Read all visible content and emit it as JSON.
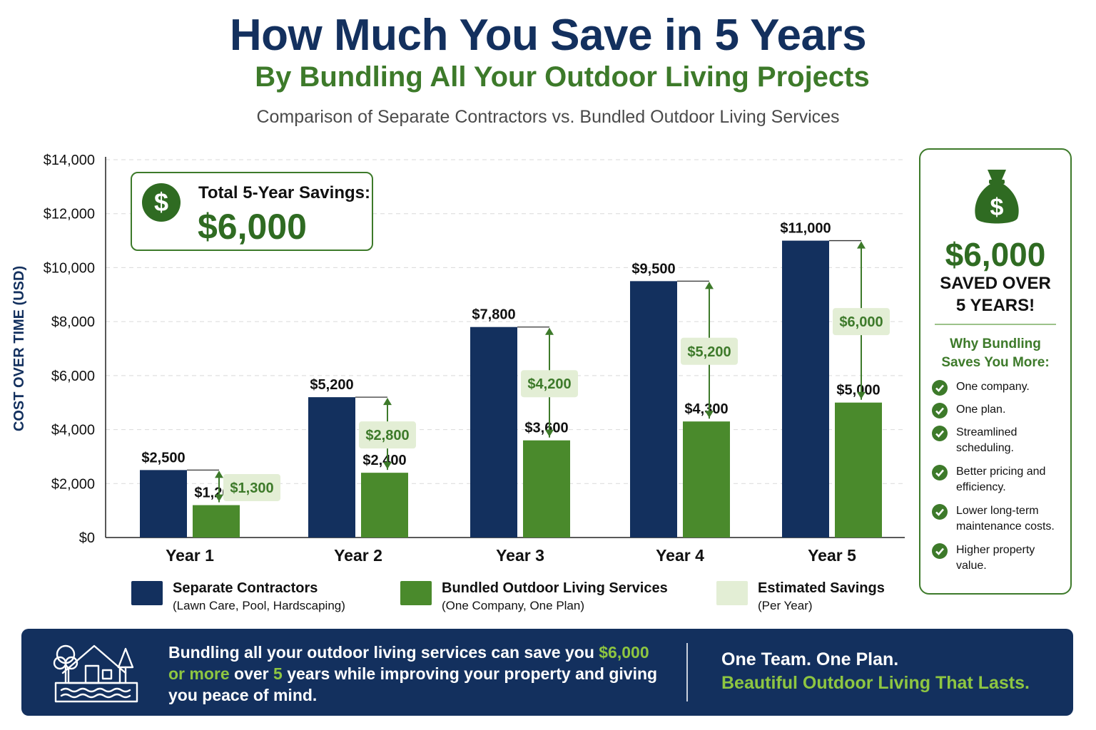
{
  "header": {
    "title": "How Much You Save in 5 Years",
    "subtitle": "By Bundling All Your Outdoor Living Projects",
    "caption": "Comparison of Separate Contractors vs. Bundled Outdoor Living Services"
  },
  "total_box": {
    "icon": "dollar-coin-icon",
    "label": "Total 5-Year Savings:",
    "value": "$6,000"
  },
  "side_panel": {
    "icon": "money-bag-icon",
    "amount": "$6,000",
    "saved_line1": "SAVED OVER",
    "saved_line2": "5 YEARS!",
    "why_line1": "Why Bundling",
    "why_line2": "Saves You More:",
    "items": [
      "One company.",
      "One plan.",
      "Streamlined scheduling.",
      "Better pricing and efficiency.",
      "Lower long-term maintenance costs.",
      "Higher property value."
    ]
  },
  "legend": [
    {
      "title": "Separate Contractors",
      "sub": "(Lawn Care, Pool, Hardscaping)",
      "color": "#13305e"
    },
    {
      "title": "Bundled Outdoor Living Services",
      "sub": "(One Company, One Plan)",
      "color": "#4a8a2c"
    },
    {
      "title": "Estimated Savings",
      "sub": "(Per Year)",
      "color": "#e3eed5"
    }
  ],
  "banner": {
    "icon": "house-pool-icon",
    "msg_part1": "Bundling all your outdoor living services can save you ",
    "msg_highlight1": "$6,000 or more",
    "msg_part2": " over ",
    "msg_highlight2": "5",
    "msg_part3": " years while improving your property and giving you peace of mind.",
    "tagline1": "One Team. One Plan.",
    "tagline2": "Beautiful Outdoor Living That Lasts."
  },
  "chart_data": {
    "type": "bar",
    "ylabel": "COST OVER TIME (USD)",
    "ylim": [
      0,
      14000
    ],
    "yticks": [
      "$0",
      "$2,000",
      "$4,000",
      "$6,000",
      "$8,000",
      "$10,000",
      "$12,000",
      "$14,000"
    ],
    "categories": [
      "Year 1",
      "Year 2",
      "Year 3",
      "Year 4",
      "Year 5"
    ],
    "grid": true,
    "series": [
      {
        "name": "Separate Contractors",
        "color": "#13305e",
        "values": [
          2500,
          5200,
          7800,
          9500,
          11000
        ],
        "labels": [
          "$2,500",
          "$5,200",
          "$7,800",
          "$9,500",
          "$11,000"
        ]
      },
      {
        "name": "Bundled Outdoor Living Services",
        "color": "#4a8a2c",
        "values": [
          1200,
          2400,
          3600,
          4300,
          5000
        ],
        "labels": [
          "$1,200",
          "$2,400",
          "$3,600",
          "$4,300",
          "$5,000"
        ]
      }
    ],
    "savings": {
      "name": "Estimated Savings",
      "values": [
        1300,
        2800,
        4200,
        5200,
        6000
      ],
      "labels": [
        "$1,300",
        "$2,800",
        "$4,200",
        "$5,200",
        "$6,000"
      ]
    }
  }
}
